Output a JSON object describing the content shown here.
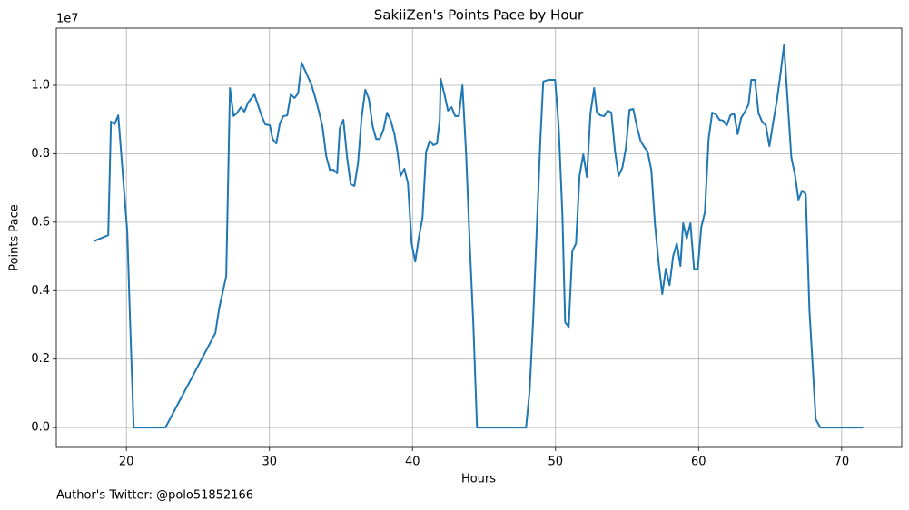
{
  "chart_data": {
    "type": "line",
    "title": "SakiiZen's Points Pace by Hour",
    "xlabel": "Hours",
    "ylabel": "Points Pace",
    "y_offset_label": "1e7",
    "footnote": "Author's Twitter: @polo51852166",
    "color": "#1f77b4",
    "grid": true,
    "xlim": [
      15.1,
      74.2
    ],
    "xticks": [
      20,
      30,
      40,
      50,
      60,
      70
    ],
    "ylim": [
      -0.058,
      1.167
    ],
    "yticks": [
      {
        "value": 0,
        "label": "0.0"
      },
      0.2,
      0.4,
      0.6,
      0.8,
      {
        "value": 1,
        "label": "1.0"
      }
    ],
    "x": [
      17.71,
      18.73,
      18.92,
      19.17,
      19.43,
      20.06,
      20.25,
      20.51,
      22.73,
      26.22,
      26.48,
      26.98,
      27.24,
      27.49,
      27.75,
      28.0,
      28.25,
      28.51,
      28.95,
      29.46,
      29.71,
      30.03,
      30.22,
      30.48,
      30.73,
      30.98,
      31.24,
      31.49,
      31.75,
      32.0,
      32.25,
      32.95,
      33.21,
      33.46,
      33.71,
      33.97,
      34.22,
      34.48,
      34.73,
      34.92,
      35.17,
      35.43,
      35.68,
      35.94,
      36.19,
      36.44,
      36.7,
      36.95,
      37.21,
      37.46,
      37.71,
      37.97,
      38.22,
      38.48,
      38.73,
      38.92,
      39.17,
      39.43,
      39.68,
      39.94,
      40.19,
      40.44,
      40.7,
      40.95,
      41.21,
      41.46,
      41.71,
      41.9,
      41.97,
      42.22,
      42.48,
      42.73,
      42.98,
      43.24,
      43.49,
      43.75,
      44.0,
      44.25,
      44.51,
      47.94,
      48.19,
      48.44,
      48.7,
      48.95,
      49.14,
      49.52,
      49.97,
      50.22,
      50.48,
      50.67,
      50.92,
      51.17,
      51.43,
      51.68,
      51.94,
      52.19,
      52.44,
      52.7,
      52.89,
      53.14,
      53.4,
      53.65,
      53.9,
      54.16,
      54.41,
      54.67,
      54.92,
      55.17,
      55.43,
      55.68,
      55.94,
      56.19,
      56.44,
      56.7,
      56.95,
      57.21,
      57.46,
      57.71,
      57.97,
      58.22,
      58.48,
      58.73,
      58.92,
      59.17,
      59.43,
      59.68,
      59.94,
      60.19,
      60.44,
      60.7,
      60.95,
      61.21,
      61.46,
      61.71,
      61.97,
      62.22,
      62.48,
      62.73,
      62.98,
      63.24,
      63.49,
      63.68,
      63.94,
      64.19,
      64.44,
      64.7,
      64.95,
      65.21,
      65.46,
      65.71,
      65.97,
      66.22,
      66.48,
      66.73,
      66.98,
      67.24,
      67.49,
      67.75,
      68.0,
      68.19,
      68.51,
      71.49
    ],
    "values": [
      0.544,
      0.562,
      0.894,
      0.886,
      0.912,
      0.573,
      0.321,
      0,
      0,
      0.276,
      0.347,
      0.443,
      0.992,
      0.91,
      0.92,
      0.936,
      0.923,
      0.95,
      0.973,
      0.91,
      0.886,
      0.883,
      0.843,
      0.83,
      0.889,
      0.91,
      0.912,
      0.973,
      0.963,
      0.976,
      1.066,
      1.0,
      0.963,
      0.923,
      0.878,
      0.793,
      0.753,
      0.753,
      0.743,
      0.875,
      0.899,
      0.788,
      0.711,
      0.706,
      0.772,
      0.905,
      0.987,
      0.96,
      0.881,
      0.843,
      0.843,
      0.87,
      0.92,
      0.897,
      0.859,
      0.814,
      0.735,
      0.756,
      0.714,
      0.538,
      0.485,
      0.554,
      0.613,
      0.806,
      0.838,
      0.825,
      0.83,
      0.897,
      1.019,
      0.976,
      0.926,
      0.936,
      0.91,
      0.91,
      1.0,
      0.798,
      0.538,
      0.305,
      0,
      0,
      0.109,
      0.321,
      0.594,
      0.851,
      1.011,
      1.016,
      1.016,
      0.878,
      0.621,
      0.308,
      0.294,
      0.515,
      0.538,
      0.737,
      0.798,
      0.732,
      0.918,
      0.992,
      0.92,
      0.912,
      0.91,
      0.926,
      0.92,
      0.806,
      0.735,
      0.759,
      0.817,
      0.928,
      0.931,
      0.881,
      0.838,
      0.82,
      0.806,
      0.751,
      0.594,
      0.48,
      0.39,
      0.464,
      0.416,
      0.501,
      0.538,
      0.472,
      0.597,
      0.552,
      0.597,
      0.464,
      0.462,
      0.586,
      0.629,
      0.843,
      0.92,
      0.915,
      0.899,
      0.897,
      0.883,
      0.912,
      0.918,
      0.857,
      0.905,
      0.923,
      0.944,
      1.016,
      1.016,
      0.918,
      0.894,
      0.883,
      0.822,
      0.891,
      0.952,
      1.029,
      1.117,
      0.958,
      0.79,
      0.74,
      0.666,
      0.692,
      0.682,
      0.342,
      0.164,
      0.024,
      0,
      0
    ]
  }
}
